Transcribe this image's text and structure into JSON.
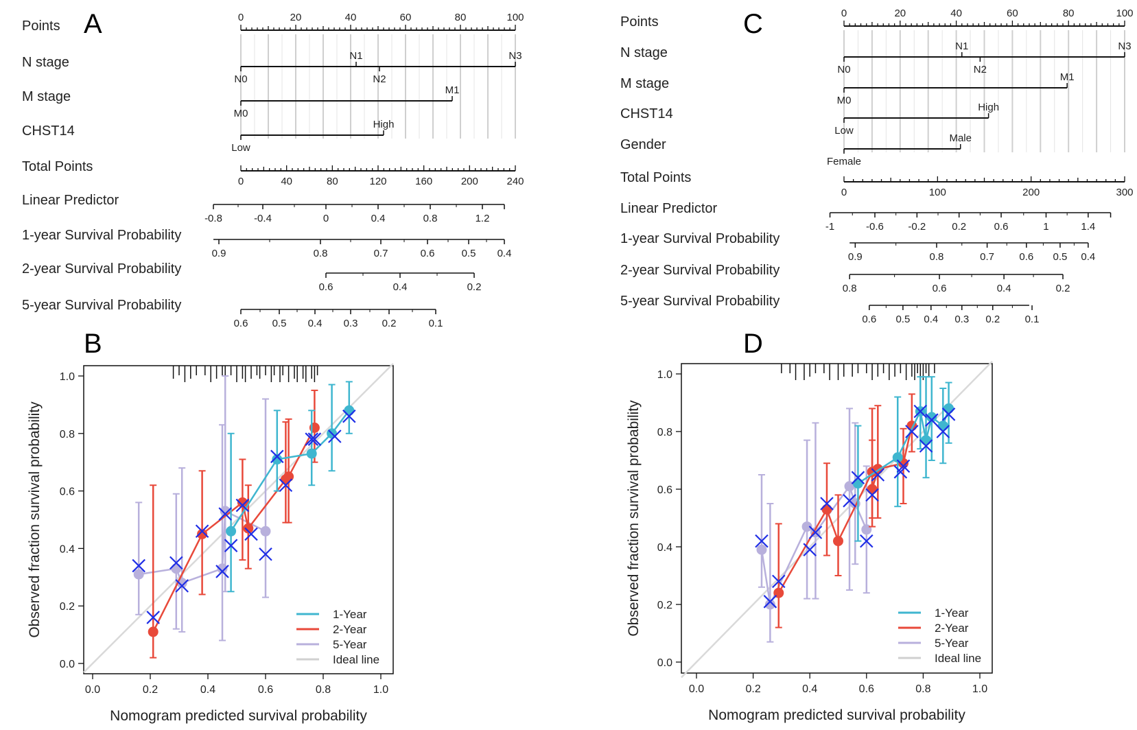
{
  "chart_data": [
    {
      "type": "nomogram",
      "panel": "A",
      "rows": [
        {
          "label": "Points",
          "kind": "axis",
          "min": 0,
          "max": 100,
          "major_labels": [
            "0",
            "20",
            "40",
            "60",
            "80",
            "100"
          ]
        },
        {
          "label": "N stage",
          "kind": "factor",
          "levels": [
            {
              "name": "N0",
              "points": 0
            },
            {
              "name": "N1",
              "points": 42
            },
            {
              "name": "N2",
              "points": 50.5
            },
            {
              "name": "N3",
              "points": 100
            }
          ]
        },
        {
          "label": "M stage",
          "kind": "factor",
          "levels": [
            {
              "name": "M0",
              "points": 0
            },
            {
              "name": "M1",
              "points": 77
            }
          ]
        },
        {
          "label": "CHST14",
          "kind": "factor",
          "levels": [
            {
              "name": "Low",
              "points": 0
            },
            {
              "name": "High",
              "points": 52
            }
          ]
        },
        {
          "label": "Total Points",
          "kind": "axis",
          "min": 0,
          "max": 240,
          "major_labels": [
            "0",
            "40",
            "80",
            "120",
            "160",
            "200",
            "240"
          ]
        },
        {
          "label": "Linear Predictor",
          "kind": "scale",
          "range_points": [
            -10,
            96
          ],
          "ticks": [
            {
              "label": "-0.8",
              "at": -10
            },
            {
              "label": "-0.4",
              "at": 8
            },
            {
              "label": "0",
              "at": 31
            },
            {
              "label": "0.4",
              "at": 50
            },
            {
              "label": "0.8",
              "at": 69
            },
            {
              "label": "1.2",
              "at": 88
            }
          ]
        },
        {
          "label": "1-year Survival Probability",
          "kind": "scale",
          "range_points": [
            -10,
            96
          ],
          "ticks": [
            {
              "label": "0.9",
              "at": -8
            },
            {
              "label": "0.8",
              "at": 29
            },
            {
              "label": "0.7",
              "at": 51
            },
            {
              "label": "0.6",
              "at": 68
            },
            {
              "label": "0.5",
              "at": 83
            },
            {
              "label": "0.4",
              "at": 96
            }
          ]
        },
        {
          "label": "2-year Survival Probability",
          "kind": "scale",
          "range_points": [
            31,
            85
          ],
          "ticks": [
            {
              "label": "0.6",
              "at": 31
            },
            {
              "label": "0.4",
              "at": 58
            },
            {
              "label": "0.2",
              "at": 85
            }
          ]
        },
        {
          "label": "5-year Survival Probability",
          "kind": "scale",
          "range_points": [
            0,
            71
          ],
          "ticks": [
            {
              "label": "0.6",
              "at": 0
            },
            {
              "label": "0.5",
              "at": 14
            },
            {
              "label": "0.4",
              "at": 27
            },
            {
              "label": "0.3",
              "at": 40
            },
            {
              "label": "0.2",
              "at": 54
            },
            {
              "label": "0.1",
              "at": 71
            }
          ]
        }
      ]
    },
    {
      "type": "nomogram",
      "panel": "C",
      "rows": [
        {
          "label": "Points",
          "kind": "axis",
          "min": 0,
          "max": 100,
          "major_labels": [
            "0",
            "20",
            "40",
            "60",
            "80",
            "100"
          ]
        },
        {
          "label": "N stage",
          "kind": "factor",
          "levels": [
            {
              "name": "N0",
              "points": 0
            },
            {
              "name": "N1",
              "points": 42
            },
            {
              "name": "N2",
              "points": 48.5
            },
            {
              "name": "N3",
              "points": 100
            }
          ]
        },
        {
          "label": "M stage",
          "kind": "factor",
          "levels": [
            {
              "name": "M0",
              "points": 0
            },
            {
              "name": "M1",
              "points": 79.5
            }
          ]
        },
        {
          "label": "CHST14",
          "kind": "factor",
          "levels": [
            {
              "name": "Low",
              "points": 0
            },
            {
              "name": "High",
              "points": 51.5
            }
          ]
        },
        {
          "label": "Gender",
          "kind": "factor",
          "levels": [
            {
              "name": "Female",
              "points": 0
            },
            {
              "name": "Male",
              "points": 41.5
            }
          ]
        },
        {
          "label": "Total Points",
          "kind": "axis",
          "min": 0,
          "max": 300,
          "major_labels": [
            "0",
            "100",
            "200",
            "300"
          ]
        },
        {
          "label": "Linear Predictor",
          "kind": "scale",
          "range_points": [
            -5,
            95
          ],
          "ticks": [
            {
              "label": "-1",
              "at": -5
            },
            {
              "label": "-0.6",
              "at": 11
            },
            {
              "label": "-0.2",
              "at": 26
            },
            {
              "label": "0.2",
              "at": 41
            },
            {
              "label": "0.6",
              "at": 56
            },
            {
              "label": "1",
              "at": 72
            },
            {
              "label": "1.4",
              "at": 87
            }
          ]
        },
        {
          "label": "1-year Survival Probability",
          "kind": "scale",
          "range_points": [
            2,
            87
          ],
          "ticks": [
            {
              "label": "0.9",
              "at": 4
            },
            {
              "label": "0.8",
              "at": 33
            },
            {
              "label": "0.7",
              "at": 51
            },
            {
              "label": "0.6",
              "at": 65
            },
            {
              "label": "0.5",
              "at": 77
            },
            {
              "label": "0.4",
              "at": 87
            }
          ]
        },
        {
          "label": "2-year Survival Probability",
          "kind": "scale",
          "range_points": [
            2,
            78
          ],
          "ticks": [
            {
              "label": "0.8",
              "at": 2
            },
            {
              "label": "0.6",
              "at": 34
            },
            {
              "label": "0.4",
              "at": 57
            },
            {
              "label": "0.2",
              "at": 78
            }
          ]
        },
        {
          "label": "5-year Survival Probability",
          "kind": "scale",
          "range_points": [
            9,
            66
          ],
          "ticks": [
            {
              "label": "0.6",
              "at": 9
            },
            {
              "label": "0.5",
              "at": 21
            },
            {
              "label": "0.4",
              "at": 31
            },
            {
              "label": "0.3",
              "at": 42
            },
            {
              "label": "0.2",
              "at": 53
            },
            {
              "label": "0.1",
              "at": 67
            }
          ]
        }
      ]
    },
    {
      "type": "calibration",
      "panel": "B",
      "xlabel": "Nomogram predicted survival probability",
      "ylabel": "Observed fraction survival probability",
      "xlim": [
        0,
        1
      ],
      "ylim": [
        0,
        1
      ],
      "xticks": [
        "0.0",
        "0.2",
        "0.4",
        "0.6",
        "0.8",
        "1.0"
      ],
      "yticks": [
        "0.0",
        "0.2",
        "0.4",
        "0.6",
        "0.8",
        "1.0"
      ],
      "legend": [
        "1-Year",
        "2-Year",
        "5-Year",
        "Ideal line"
      ],
      "legend_position": "bottom-right",
      "rug": [
        0.28,
        0.3,
        0.32,
        0.34,
        0.36,
        0.39,
        0.41,
        0.43,
        0.45,
        0.46,
        0.48,
        0.5,
        0.52,
        0.53,
        0.55,
        0.57,
        0.58,
        0.6,
        0.62,
        0.63,
        0.65,
        0.66,
        0.68,
        0.7,
        0.71,
        0.73,
        0.74,
        0.76,
        0.77,
        0.78
      ],
      "series": [
        {
          "name": "1-Year",
          "color": "#3fb6cf",
          "points": [
            {
              "x": 0.48,
              "y": 0.46,
              "lo": 0.25,
              "hi": 0.8
            },
            {
              "x": 0.64,
              "y": 0.71,
              "lo": 0.6,
              "hi": 0.88
            },
            {
              "x": 0.76,
              "y": 0.73,
              "lo": 0.62,
              "hi": 0.88
            },
            {
              "x": 0.83,
              "y": 0.8,
              "lo": 0.67,
              "hi": 0.97
            },
            {
              "x": 0.89,
              "y": 0.88,
              "lo": 0.8,
              "hi": 0.98
            }
          ],
          "crosses": [
            {
              "x": 0.48,
              "y": 0.41
            },
            {
              "x": 0.64,
              "y": 0.72
            },
            {
              "x": 0.76,
              "y": 0.78
            },
            {
              "x": 0.84,
              "y": 0.79
            },
            {
              "x": 0.89,
              "y": 0.86
            }
          ]
        },
        {
          "name": "2-Year",
          "color": "#e8493a",
          "points": [
            {
              "x": 0.21,
              "y": 0.11,
              "lo": 0.02,
              "hi": 0.62
            },
            {
              "x": 0.38,
              "y": 0.45,
              "lo": 0.24,
              "hi": 0.67
            },
            {
              "x": 0.52,
              "y": 0.56,
              "lo": 0.36,
              "hi": 0.71
            },
            {
              "x": 0.54,
              "y": 0.47,
              "lo": 0.33,
              "hi": 0.62
            },
            {
              "x": 0.67,
              "y": 0.64,
              "lo": 0.49,
              "hi": 0.84
            },
            {
              "x": 0.68,
              "y": 0.65,
              "lo": 0.49,
              "hi": 0.85
            },
            {
              "x": 0.77,
              "y": 0.82,
              "lo": 0.7,
              "hi": 0.95
            }
          ],
          "crosses": [
            {
              "x": 0.21,
              "y": 0.16
            },
            {
              "x": 0.38,
              "y": 0.46
            },
            {
              "x": 0.52,
              "y": 0.55
            },
            {
              "x": 0.55,
              "y": 0.45
            },
            {
              "x": 0.67,
              "y": 0.62
            },
            {
              "x": 0.77,
              "y": 0.78
            }
          ]
        },
        {
          "name": "5-Year",
          "color": "#b8b0dc",
          "points": [
            {
              "x": 0.16,
              "y": 0.31,
              "lo": 0.17,
              "hi": 0.56
            },
            {
              "x": 0.29,
              "y": 0.33,
              "lo": 0.12,
              "hi": 0.59
            },
            {
              "x": 0.31,
              "y": 0.28,
              "lo": 0.11,
              "hi": 0.68
            },
            {
              "x": 0.45,
              "y": 0.33,
              "lo": 0.08,
              "hi": 0.83
            },
            {
              "x": 0.46,
              "y": 0.53,
              "lo": 0.25,
              "hi": 1.0
            },
            {
              "x": 0.6,
              "y": 0.46,
              "lo": 0.23,
              "hi": 0.92
            }
          ],
          "crosses": [
            {
              "x": 0.16,
              "y": 0.34
            },
            {
              "x": 0.29,
              "y": 0.35
            },
            {
              "x": 0.31,
              "y": 0.27
            },
            {
              "x": 0.45,
              "y": 0.32
            },
            {
              "x": 0.46,
              "y": 0.52
            },
            {
              "x": 0.6,
              "y": 0.38
            }
          ]
        }
      ]
    },
    {
      "type": "calibration",
      "panel": "D",
      "xlabel": "Nomogram predicted survival probability",
      "ylabel": "Observed fraction survival probability",
      "xlim": [
        0,
        1
      ],
      "ylim": [
        0,
        1
      ],
      "xticks": [
        "0.0",
        "0.2",
        "0.4",
        "0.6",
        "0.8",
        "1.0"
      ],
      "yticks": [
        "0.0",
        "0.2",
        "0.4",
        "0.6",
        "0.8",
        "1.0"
      ],
      "legend": [
        "1-Year",
        "2-Year",
        "5-Year",
        "Ideal line"
      ],
      "legend_position": "bottom-right",
      "rug": [
        0.3,
        0.33,
        0.35,
        0.38,
        0.4,
        0.42,
        0.45,
        0.47,
        0.5,
        0.52,
        0.55,
        0.57,
        0.6,
        0.62,
        0.64,
        0.66,
        0.68,
        0.7,
        0.72,
        0.74,
        0.76,
        0.77,
        0.78,
        0.79,
        0.8,
        0.81,
        0.82,
        0.84
      ],
      "series": [
        {
          "name": "1-Year",
          "color": "#3fb6cf",
          "points": [
            {
              "x": 0.57,
              "y": 0.62,
              "lo": 0.42,
              "hi": 0.82
            },
            {
              "x": 0.71,
              "y": 0.71,
              "lo": 0.54,
              "hi": 0.92
            },
            {
              "x": 0.79,
              "y": 0.87,
              "lo": 0.74,
              "hi": 0.99
            },
            {
              "x": 0.81,
              "y": 0.77,
              "lo": 0.64,
              "hi": 0.99
            },
            {
              "x": 0.83,
              "y": 0.85,
              "lo": 0.7,
              "hi": 0.99
            },
            {
              "x": 0.87,
              "y": 0.82,
              "lo": 0.69,
              "hi": 0.95
            },
            {
              "x": 0.89,
              "y": 0.88,
              "lo": 0.76,
              "hi": 0.97
            }
          ],
          "crosses": [
            {
              "x": 0.57,
              "y": 0.64
            },
            {
              "x": 0.72,
              "y": 0.66
            },
            {
              "x": 0.79,
              "y": 0.87
            },
            {
              "x": 0.81,
              "y": 0.75
            },
            {
              "x": 0.83,
              "y": 0.84
            },
            {
              "x": 0.87,
              "y": 0.8
            },
            {
              "x": 0.89,
              "y": 0.86
            }
          ]
        },
        {
          "name": "2-Year",
          "color": "#e8493a",
          "points": [
            {
              "x": 0.29,
              "y": 0.24,
              "lo": 0.12,
              "hi": 0.48
            },
            {
              "x": 0.46,
              "y": 0.53,
              "lo": 0.37,
              "hi": 0.69
            },
            {
              "x": 0.5,
              "y": 0.42,
              "lo": 0.3,
              "hi": 0.58
            },
            {
              "x": 0.62,
              "y": 0.66,
              "lo": 0.5,
              "hi": 0.88
            },
            {
              "x": 0.62,
              "y": 0.6,
              "lo": 0.47,
              "hi": 0.77
            },
            {
              "x": 0.64,
              "y": 0.67,
              "lo": 0.5,
              "hi": 0.89
            },
            {
              "x": 0.73,
              "y": 0.69,
              "lo": 0.55,
              "hi": 0.81
            },
            {
              "x": 0.76,
              "y": 0.82,
              "lo": 0.73,
              "hi": 0.93
            }
          ],
          "crosses": [
            {
              "x": 0.29,
              "y": 0.28
            },
            {
              "x": 0.46,
              "y": 0.55
            },
            {
              "x": 0.62,
              "y": 0.58
            },
            {
              "x": 0.64,
              "y": 0.65
            },
            {
              "x": 0.73,
              "y": 0.68
            },
            {
              "x": 0.76,
              "y": 0.8
            }
          ]
        },
        {
          "name": "5-Year",
          "color": "#b8b0dc",
          "points": [
            {
              "x": 0.23,
              "y": 0.39,
              "lo": 0.26,
              "hi": 0.65
            },
            {
              "x": 0.26,
              "y": 0.2,
              "lo": 0.07,
              "hi": 0.55
            },
            {
              "x": 0.39,
              "y": 0.47,
              "lo": 0.22,
              "hi": 0.77
            },
            {
              "x": 0.42,
              "y": 0.45,
              "lo": 0.22,
              "hi": 0.83
            },
            {
              "x": 0.54,
              "y": 0.61,
              "lo": 0.25,
              "hi": 0.88
            },
            {
              "x": 0.56,
              "y": 0.55,
              "lo": 0.34,
              "hi": 0.83
            },
            {
              "x": 0.6,
              "y": 0.46,
              "lo": 0.24,
              "hi": 0.68
            }
          ],
          "crosses": [
            {
              "x": 0.23,
              "y": 0.42
            },
            {
              "x": 0.26,
              "y": 0.21
            },
            {
              "x": 0.4,
              "y": 0.39
            },
            {
              "x": 0.42,
              "y": 0.45
            },
            {
              "x": 0.54,
              "y": 0.56
            },
            {
              "x": 0.6,
              "y": 0.42
            }
          ]
        }
      ]
    }
  ]
}
